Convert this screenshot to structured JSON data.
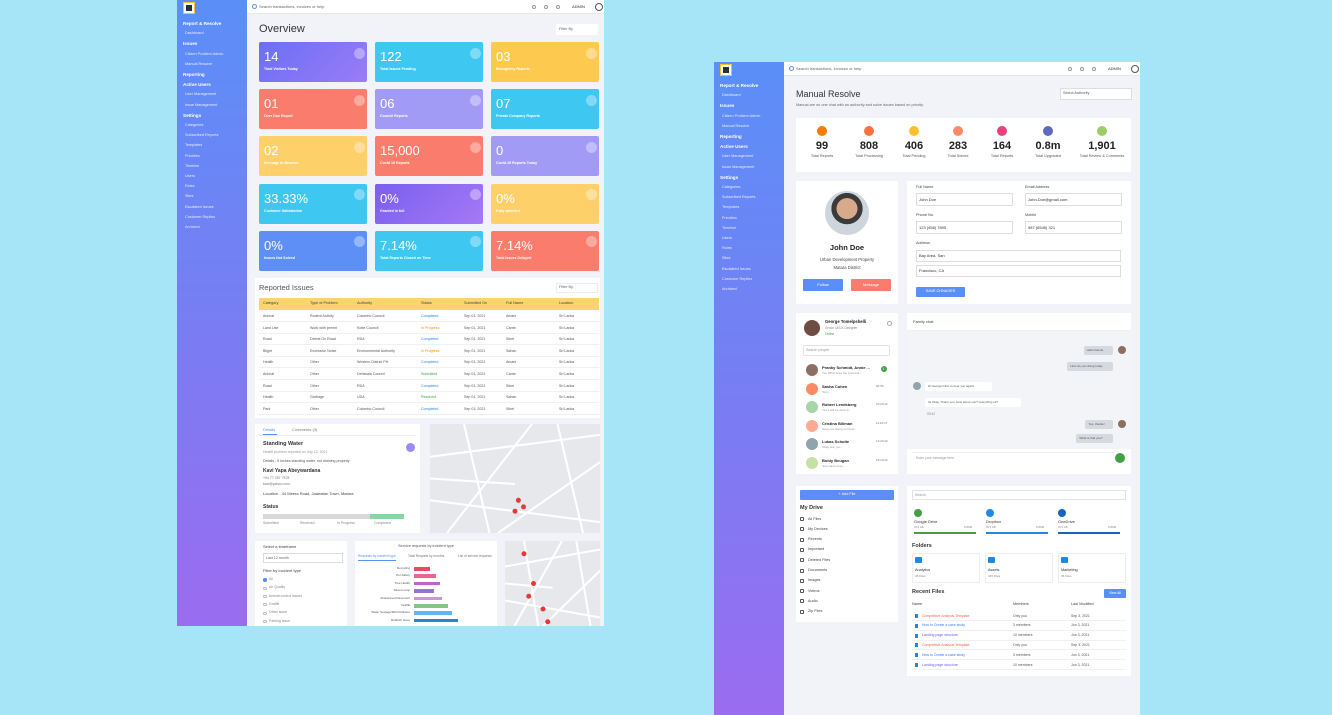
{
  "left": {
    "sidebar": [
      {
        "title": "Report & Resolve",
        "items": [
          "Dashboard"
        ]
      },
      {
        "title": "Issues",
        "items": [
          "Citizen Problem Admin",
          "Manual Resolve"
        ]
      },
      {
        "title": "Reporting",
        "items": []
      },
      {
        "title": "Active Users",
        "items": [
          "User Management",
          "Issue Management"
        ]
      },
      {
        "title": "Settings",
        "items": [
          "Categories",
          "Subscribed Reports",
          "Templates",
          "Priorities",
          "Timeline",
          "Users",
          "Roles",
          "Sites",
          "Escalated Issues",
          "Customer Replies",
          "Archived"
        ]
      }
    ],
    "topbar": {
      "search": "Search transactions, invoices or help",
      "user": "ADMIN"
    },
    "overview": {
      "title": "Overview",
      "filter": "Filter By",
      "cards": [
        {
          "value": "14",
          "label": "Total Visitors Today"
        },
        {
          "value": "122",
          "label": "Total Issues Pending"
        },
        {
          "value": "03",
          "label": "Emergency Reports"
        },
        {
          "value": "01",
          "label": "Over Due Report"
        },
        {
          "value": "06",
          "label": "Council Reports"
        },
        {
          "value": "07",
          "label": "Private Company Reports"
        },
        {
          "value": "02",
          "label": "Message to Resolve"
        },
        {
          "value": "15,000",
          "label": "Covid 19 Reports"
        },
        {
          "value": "0",
          "label": "Covid-19 Reports Today"
        },
        {
          "value": "33.33%",
          "label": "Customer Satisfaction"
        },
        {
          "value": "0%",
          "label": "Granted in full"
        },
        {
          "value": "0%",
          "label": "Fully satisfied"
        },
        {
          "value": "0%",
          "label": "Issues Not Solved"
        },
        {
          "value": "7.14%",
          "label": "Total Reports Closed on Time"
        },
        {
          "value": "7.14%",
          "label": "Total Issues Delayed"
        }
      ]
    },
    "issues": {
      "title": "Reported Issues",
      "filter": "Filter By",
      "columns": [
        "Category",
        "Type of Problem",
        "Authority",
        "Status",
        "Submitted On",
        "Full Name",
        "Location"
      ],
      "rows": [
        [
          "Animal",
          "Rodent Activity",
          "Colombo Council",
          "Completed",
          "Sep 01, 2021",
          "Amani",
          "Sri Lanka"
        ],
        [
          "Land Use",
          "Work with permit",
          "Kotte Council",
          "In Progress",
          "Sep 01, 2021",
          "Carrie",
          "Sri Lanka"
        ],
        [
          "Road",
          "Debris On Road",
          "RDA",
          "Completed",
          "Sep 01, 2021",
          "Sibel",
          "Sri Lanka"
        ],
        [
          "Blight",
          "Excessive Noise",
          "Environmental Authority",
          "In Progress",
          "Sep 01, 2021",
          "Sahan",
          "Sri Lanka"
        ],
        [
          "Health",
          "Other",
          "Western District PH",
          "Completed",
          "Sep 01, 2021",
          "Amani",
          "Sri Lanka"
        ],
        [
          "Animal",
          "Other",
          "Dehiwala Council",
          "Submitted",
          "Sep 01, 2021",
          "Carrie",
          "Sri Lanka"
        ],
        [
          "Road",
          "Other",
          "RDA",
          "Completed",
          "Sep 01, 2021",
          "Sibel",
          "Sri Lanka"
        ],
        [
          "Health",
          "Garbage",
          "UDA",
          "Resolved",
          "Sep 01, 2021",
          "Sahan",
          "Sri Lanka"
        ],
        [
          "Park",
          "Other",
          "Colombo Council",
          "Completed",
          "Sep 01, 2021",
          "Sibel",
          "Sri Lanka"
        ]
      ]
    },
    "details": {
      "tabs": [
        "Details",
        "Comments (3)"
      ],
      "title": "Standing Water",
      "reported": "Health problem reported on July 12, 2021",
      "details": "Details - 5 inches standing water, not draining properly",
      "name": "Kavi Yapa Abeywardana",
      "phone": "+94 77 257 7878",
      "email": "kavi@yahoo.com",
      "location": "Location - 44 Meera Road, Jaawalan Town, Matara",
      "status": "Status",
      "steps": [
        "Submitted",
        "Received",
        "In Progress",
        "Completed"
      ]
    },
    "filters": {
      "timeframe": "Select a timeframe",
      "period": "Last 12 month",
      "incident": "Filter by Incident type",
      "options": [
        "All",
        "Air Quality",
        "Animal control issues",
        "Graffiti",
        "Other issue",
        "Parking issue"
      ]
    },
    "requests": {
      "title": "Service requests by incident type",
      "tabs": [
        "Requests by incident type",
        "Total Request by months",
        "List of service requests"
      ],
      "labels": [
        "Recycling",
        "Pet Safety",
        "Tree Health",
        "Street Lamp",
        "Abandoned Pavement",
        "Graffiti",
        "Water Sewage/Illicit Pollution",
        "Rubbish Issue"
      ],
      "values": [
        8,
        11,
        13,
        10,
        14,
        17,
        19,
        22
      ]
    }
  },
  "right": {
    "sidebar": [
      {
        "title": "Report & Resolve",
        "items": [
          "Dashboard"
        ]
      },
      {
        "title": "Issues",
        "items": [
          "Citizen Problem Admin",
          "Manual Resolve"
        ]
      },
      {
        "title": "Reporting",
        "items": []
      },
      {
        "title": "Active Users",
        "items": [
          "User Management",
          "Issue Management"
        ]
      },
      {
        "title": "Settings",
        "items": [
          "Categories",
          "Subscribed Reports",
          "Templates",
          "Priorities",
          "Timeline",
          "Users",
          "Roles",
          "Sites",
          "Escalated Issues",
          "Customer Replies",
          "Archived"
        ]
      }
    ],
    "topbar": {
      "search": "Search transactions, invoices or help",
      "user": "ADMIN"
    },
    "header": {
      "title": "Manual Resolve",
      "subtitle": "Manual are on one chat with an authority and solve issues based on priority.",
      "select": "Select Authority"
    },
    "stats": [
      {
        "value": "99",
        "label": "Total Reports"
      },
      {
        "value": "808",
        "label": "Total Processing"
      },
      {
        "value": "406",
        "label": "Total Pending"
      },
      {
        "value": "283",
        "label": "Total Solved"
      },
      {
        "value": "164",
        "label": "Total Reports"
      },
      {
        "value": "0.8m",
        "label": "Total Upgraded"
      },
      {
        "value": "1,901",
        "label": "Total Review & Comments"
      }
    ],
    "profile": {
      "name": "John Doe",
      "line1": "Urban Development Property",
      "line2": "Matara District",
      "follow": "Follow",
      "message": "Message"
    },
    "form": {
      "fields": [
        {
          "label": "Full Name",
          "value": "John Doe"
        },
        {
          "label": "Email Address",
          "value": "John.Doe@gmail.com"
        },
        {
          "label": "Phone No.",
          "value": "123 (456) 7895"
        },
        {
          "label": "Mobile",
          "value": "987 (6545) 321"
        }
      ],
      "address": {
        "label": "Address",
        "lines": [
          "Bay Area, San",
          "Francisco, CA"
        ]
      },
      "save": "SAVE CHNAGES"
    },
    "contacts": {
      "me": {
        "name": "George Tomelpshelli",
        "role": "Senior UI/UX Designer",
        "state": "Online"
      },
      "search": "Search people",
      "list": [
        {
          "name": "Pranky Schmidt, Annie ...",
          "text": "Yes What does the Antenna...",
          "time": "1"
        },
        {
          "name": "Sasha Cohen",
          "text": "Terry...",
          "time": "02:56"
        },
        {
          "name": "Robert Lendsberg",
          "text": "Yes it will be done in...",
          "time": "10:20:12"
        },
        {
          "name": "Cristina Billman",
          "text": "Team are doing our best...",
          "time": "11:10:17"
        },
        {
          "name": "Lukas Schulte",
          "text": "Okay see you...",
          "time": "12:20:42"
        },
        {
          "name": "Boldy Beugan",
          "text": "Just came here...",
          "time": "15:10:22"
        }
      ]
    },
    "chat": {
      "title": "Family chat",
      "messages": [
        {
          "from": "them",
          "text": "Hello friends"
        },
        {
          "from": "them",
          "text": "How do you doing today"
        },
        {
          "from": "me",
          "text": "Hi George! Nice to hear you again!"
        },
        {
          "from": "me",
          "text": "Its Okay, Thank you, How about you? everything ok?"
        },
        {
          "from": "them",
          "text": "Yes, thanks!"
        },
        {
          "from": "them",
          "text": "What is that you?"
        }
      ],
      "time": "09:42",
      "input": "Enter your message here"
    },
    "drive": {
      "add": "+ Add File",
      "title": "My Drive",
      "items": [
        "All Files",
        "My Devices",
        "Recents",
        "Important",
        "Deleted Files",
        "Documents",
        "Images",
        "Videos",
        "Audio",
        "Zip Files"
      ]
    },
    "files": {
      "search": "Search",
      "storages": [
        {
          "name": "Google Drive",
          "used": "45.5 GB",
          "total": "100GB"
        },
        {
          "name": "Dropbox",
          "used": "45.5 GB",
          "total": "100GB"
        },
        {
          "name": "OneDrive",
          "used": "45.5 GB",
          "total": "100GB"
        }
      ],
      "folders_title": "Folders",
      "folders": [
        {
          "name": "Analytics",
          "count": "45 Files"
        },
        {
          "name": "Assets",
          "count": "345 Files"
        },
        {
          "name": "Marketing",
          "count": "45 Files"
        }
      ],
      "recent_title": "Recent Files",
      "view_all": "View All",
      "columns": [
        "Name",
        "Members",
        "Last Modified"
      ],
      "rows": [
        [
          "Competitive Analysis Template",
          "Only you",
          "Sep 3, 2021"
        ],
        [
          "How to Create a case study",
          "3 members",
          "Jun 3, 2021"
        ],
        [
          "Landing page structure",
          "10 members",
          "Jun 3, 2021"
        ],
        [
          "Competitive Analysis Template",
          "Only you",
          "Sep 3, 2021"
        ],
        [
          "How to Create a case study",
          "3 members",
          "Jun 3, 2021"
        ],
        [
          "Landing page structure",
          "10 members",
          "Jun 3, 2021"
        ]
      ]
    }
  }
}
